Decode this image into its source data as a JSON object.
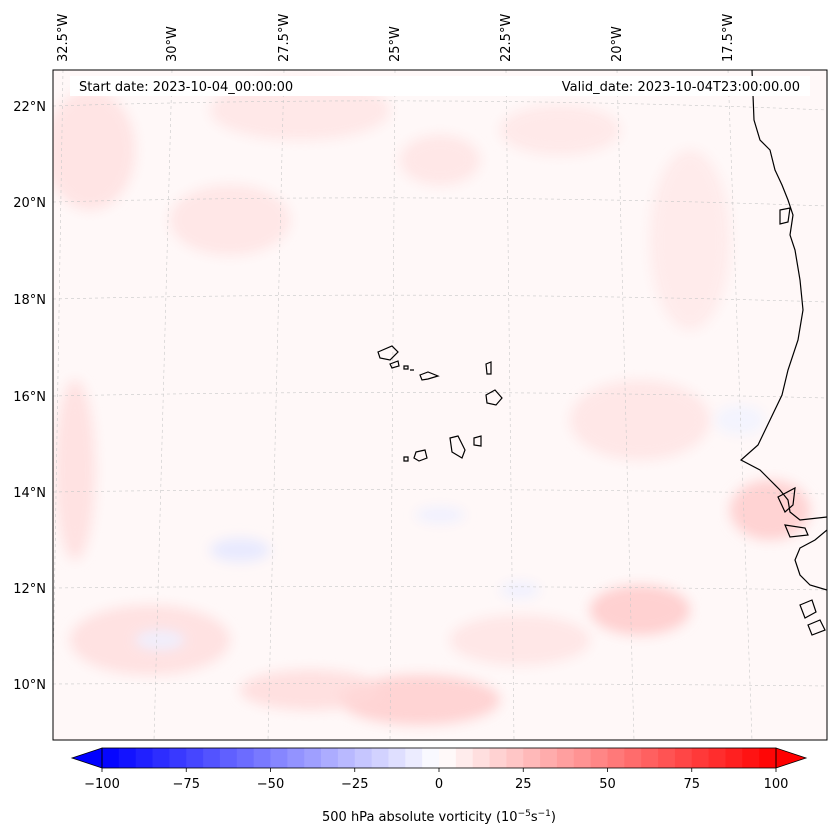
{
  "header": {
    "start_date": "Start date: 2023-10-04_00:00:00",
    "valid_date": "Valid_date: 2023-10-04T23:00:00.00"
  },
  "longitude_labels": [
    "32.5°W",
    "30°W",
    "27.5°W",
    "25°W",
    "22.5°W",
    "20°W",
    "17.5°W"
  ],
  "latitude_labels": [
    "22°N",
    "20°N",
    "18°N",
    "16°N",
    "14°N",
    "12°N",
    "10°N"
  ],
  "colorbar": {
    "label": "500 hPa absolute vorticity (10",
    "label_exp1": "−5",
    "label_mid": "s",
    "label_exp2": "−1",
    "label_end": ")",
    "ticks": [
      "−100",
      "−75",
      "−50",
      "−25",
      "0",
      "25",
      "50",
      "75",
      "100"
    ],
    "min": -100,
    "max": 100,
    "low_color": "#0000ff",
    "mid_color": "#ffffff",
    "high_color": "#ff0000"
  },
  "map": {
    "background_color": "#fff8f8",
    "coastline_color": "#000000",
    "gridline_color": "#c8c8c8"
  }
}
